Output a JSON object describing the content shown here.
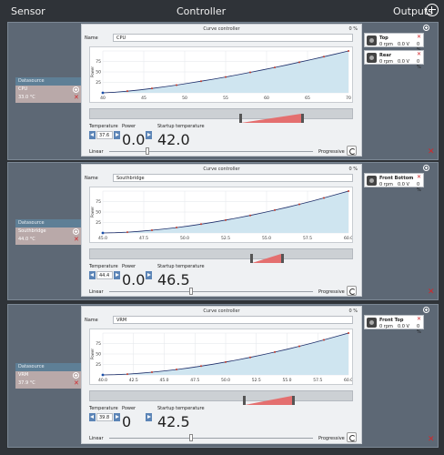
{
  "header": {
    "sensor": "Sensor",
    "controller": "Controller",
    "outputs": "Outputs"
  },
  "rows": [
    {
      "datasource_label": "Datasource",
      "source_name": "CPU",
      "source_value": "33.0 °C",
      "controller_title": "Curve controller",
      "controller_pct": "0 %",
      "name_label": "Name",
      "name_value": "CPU",
      "x_ticks": [
        "40",
        "45",
        "50",
        "55",
        "60",
        "65",
        "70"
      ],
      "y_ticks": [
        "25",
        "50",
        "75"
      ],
      "y_axis_label": "Power",
      "temperature_label": "Temperature",
      "power_label": "Power",
      "startup_label": "Startup temperature",
      "temperature_value": "37.6",
      "power_value": "0.0",
      "startup_value": "42.0",
      "linear_label": "Linear",
      "progressive_label": "Progressive",
      "outputs": [
        {
          "name": "Top",
          "rpm": "0 rpm",
          "volt": "0.0 V",
          "pct": "0 %"
        },
        {
          "name": "Rear",
          "rpm": "0 rpm",
          "volt": "0.0 V",
          "pct": "0 %"
        }
      ]
    },
    {
      "datasource_label": "Datasource",
      "source_name": "Southbridge",
      "source_value": "44.0 °C",
      "controller_title": "Curve controller",
      "controller_pct": "0 %",
      "name_label": "Name",
      "name_value": "Southbridge",
      "x_ticks": [
        "45.0",
        "47.5",
        "50.0",
        "52.5",
        "55.0",
        "57.5",
        "60.0"
      ],
      "y_ticks": [
        "25",
        "50",
        "75"
      ],
      "y_axis_label": "Power",
      "temperature_label": "Temperature",
      "power_label": "Power",
      "startup_label": "Startup temperature",
      "temperature_value": "44.4",
      "power_value": "0.0",
      "startup_value": "46.5",
      "linear_label": "Linear",
      "progressive_label": "Progressive",
      "outputs": [
        {
          "name": "Front Bottom",
          "rpm": "0 rpm",
          "volt": "0.0 V",
          "pct": "0 %"
        }
      ]
    },
    {
      "datasource_label": "Datasource",
      "source_name": "VRM",
      "source_value": "37.9 °C",
      "controller_title": "Curve controller",
      "controller_pct": "0 %",
      "name_label": "Name",
      "name_value": "VRM",
      "x_ticks": [
        "40.0",
        "42.5",
        "45.0",
        "47.5",
        "50.0",
        "52.5",
        "55.0",
        "57.5",
        "60.0"
      ],
      "y_ticks": [
        "25",
        "50",
        "75"
      ],
      "y_axis_label": "Power",
      "temperature_label": "Temperature",
      "power_label": "Power",
      "startup_label": "Startup temperature",
      "temperature_value": "39.8",
      "power_value": "0",
      "startup_value": "42.5",
      "linear_label": "Linear",
      "progressive_label": "Progressive",
      "outputs": [
        {
          "name": "Front Top",
          "rpm": "0 rpm",
          "volt": "0.0 V",
          "pct": "0 %"
        }
      ]
    }
  ],
  "colors": {
    "accent_blue": "#5b84b6",
    "curve": "#1f2f6a",
    "point": "#c0392b",
    "fill": "#cfe5f0",
    "remove": "#d3272b"
  }
}
